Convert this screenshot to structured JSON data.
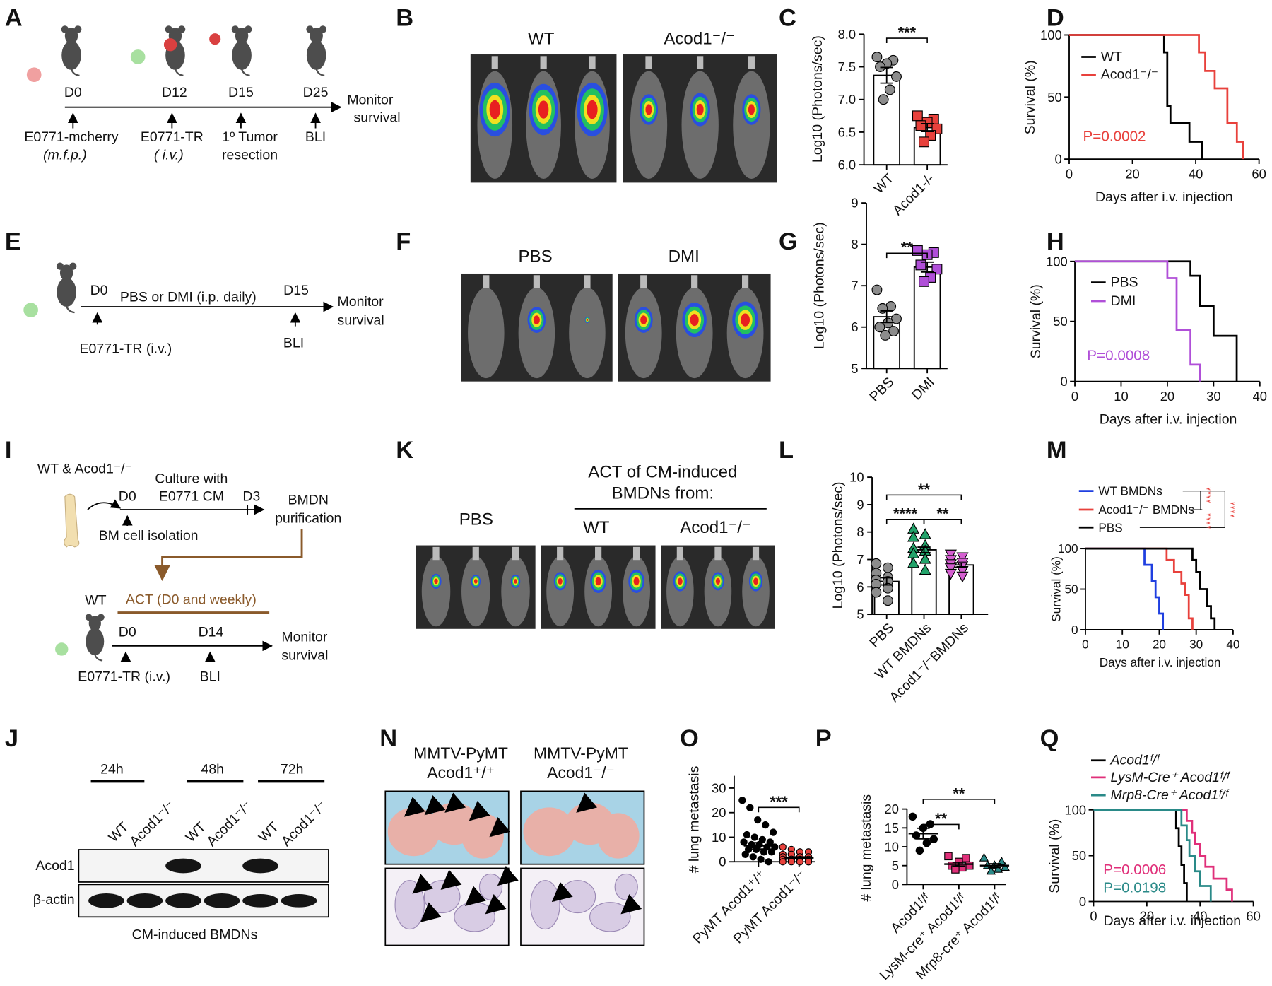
{
  "panel_letters": [
    "A",
    "B",
    "C",
    "D",
    "E",
    "F",
    "G",
    "H",
    "I",
    "J",
    "K",
    "L",
    "M",
    "N",
    "O",
    "P",
    "Q"
  ],
  "schematic_a": {
    "days": [
      "D0",
      "D12",
      "D15",
      "D25"
    ],
    "captions": [
      [
        "E0771-mcherry",
        "(m.f.p.)"
      ],
      [
        "E0771-TR",
        "( i.v.)"
      ],
      [
        "1º Tumor",
        "resection"
      ],
      [
        "BLI"
      ]
    ],
    "end": [
      "Monitor",
      "survival"
    ]
  },
  "images_b": {
    "groups": [
      "WT",
      "Acod1⁻/⁻"
    ]
  },
  "schematic_e": {
    "days": [
      "D0",
      "D15"
    ],
    "treatment": "PBS or DMI  (i.p. daily)",
    "captions": [
      "E0771-TR (i.v.)",
      "BLI"
    ],
    "end": [
      "Monitor",
      "survival"
    ]
  },
  "images_f": {
    "groups": [
      "PBS",
      "DMI"
    ]
  },
  "schematic_i": {
    "source": "WT & Acod1⁻/⁻",
    "culture": [
      "Culture with",
      "E0771 CM"
    ],
    "days_top": [
      "D0",
      "D3"
    ],
    "isolation": "BM cell isolation",
    "purification": [
      "BMDN",
      "purification"
    ],
    "act": "ACT (D0 and weekly)",
    "host": "WT",
    "days_bottom": [
      "D0",
      "D14"
    ],
    "captions": [
      "E0771-TR (i.v.)",
      "BLI"
    ],
    "end": [
      "Monitor",
      "survival"
    ]
  },
  "images_k": {
    "control": "PBS",
    "heading": [
      "ACT of CM-induced",
      "BMDNs from:"
    ],
    "groups": [
      "WT",
      "Acod1⁻/⁻"
    ]
  },
  "blot_j": {
    "times": [
      "24h",
      "48h",
      "72h"
    ],
    "lanes": [
      "WT",
      "Acod1⁻/⁻",
      "WT",
      "Acod1⁻/⁻",
      "WT",
      "Acod1⁻/⁻"
    ],
    "proteins": [
      "Acod1",
      "β-actin"
    ],
    "caption": "CM-induced BMDNs"
  },
  "images_n": {
    "groups": [
      [
        "MMTV-PyMT",
        "Acod1⁺/⁺"
      ],
      [
        "MMTV-PyMT",
        "Acod1⁻/⁻"
      ]
    ]
  },
  "chart_data": [
    {
      "type": "bar",
      "ylabel": "Log10 (Photons/sec)",
      "categories": [
        "WT",
        "Acod1-/-"
      ],
      "values": [
        7.37,
        6.57
      ],
      "errors": [
        0.12,
        0.06
      ],
      "points": [
        [
          7.65,
          7.6,
          7.55,
          7.5,
          7.35,
          7.15,
          7.0
        ],
        [
          6.75,
          6.7,
          6.65,
          6.6,
          6.55,
          6.45,
          6.35
        ]
      ],
      "colors": [
        "#8c8c8c",
        "#e8413c"
      ],
      "markers": [
        "circle",
        "square"
      ],
      "ylim": [
        6,
        8
      ],
      "yticks": [
        {
          "value": 6,
          "label": "6.0"
        },
        6.5,
        {
          "value": 7,
          "label": "7.0"
        },
        7.5,
        {
          "value": 8,
          "label": "8.0"
        }
      ],
      "annotations": [
        {
          "text": "***"
        }
      ]
    },
    {
      "type": "line",
      "ylabel": "Survival (%)",
      "xlabel": "Days after i.v. injection",
      "xlim": [
        0,
        60
      ],
      "xticks": [
        0,
        20,
        40,
        60
      ],
      "ylim": [
        0,
        100
      ],
      "yticks": [
        0,
        50,
        100
      ],
      "series": [
        {
          "name": "WT",
          "color": "#000000",
          "x": [
            0,
            30,
            31,
            32,
            38,
            42
          ],
          "values": [
            100,
            86,
            43,
            29,
            14,
            0
          ]
        },
        {
          "name": "Acod1⁻/⁻",
          "color": "#e8413c",
          "x": [
            0,
            41,
            43,
            46,
            50,
            53,
            55
          ],
          "values": [
            100,
            86,
            71,
            57,
            29,
            14,
            0
          ]
        }
      ],
      "annotations": [
        {
          "text": "P=0.0002",
          "color": "#e8413c"
        }
      ]
    },
    {
      "type": "bar",
      "ylabel": "Log10 (Photons/sec)",
      "categories": [
        "PBS",
        "DMI"
      ],
      "values": [
        6.25,
        7.45
      ],
      "errors": [
        0.14,
        0.12
      ],
      "points": [
        [
          6.9,
          6.5,
          6.45,
          6.2,
          6.1,
          6.0,
          5.9,
          5.8
        ],
        [
          7.85,
          7.8,
          7.75,
          7.5,
          7.4,
          7.2,
          7.1
        ]
      ],
      "colors": [
        "#8c8c8c",
        "#b04fd8"
      ],
      "markers": [
        "circle",
        "square"
      ],
      "ylim": [
        5,
        9
      ],
      "yticks": [
        5,
        6,
        7,
        8,
        9
      ],
      "annotations": [
        {
          "text": "**"
        }
      ]
    },
    {
      "type": "line",
      "ylabel": "Survival (%)",
      "xlabel": "Days after i.v. injection",
      "xlim": [
        0,
        40
      ],
      "xticks": [
        0,
        10,
        20,
        30,
        40
      ],
      "ylim": [
        0,
        100
      ],
      "yticks": [
        0,
        50,
        100
      ],
      "series": [
        {
          "name": "PBS",
          "color": "#000000",
          "x": [
            0,
            25,
            27,
            30,
            35
          ],
          "values": [
            100,
            88,
            63,
            38,
            0
          ]
        },
        {
          "name": "DMI",
          "color": "#b04fd8",
          "x": [
            0,
            20,
            22,
            25,
            27
          ],
          "values": [
            100,
            86,
            43,
            14,
            0
          ]
        }
      ],
      "annotations": [
        {
          "text": "P=0.0008",
          "color": "#b04fd8"
        }
      ]
    },
    {
      "type": "bar",
      "ylabel": "Log10 (Photons/sec)",
      "categories": [
        "PBS",
        "WT BMDNs",
        "Acod1⁻/⁻BMDNs"
      ],
      "values": [
        6.2,
        7.35,
        6.8
      ],
      "errors": [
        0.13,
        0.1,
        0.08
      ],
      "points": [
        [
          6.85,
          6.7,
          6.5,
          6.35,
          6.25,
          6.2,
          6.1,
          5.95,
          5.8,
          5.5
        ],
        [
          8.1,
          7.9,
          7.8,
          7.5,
          7.4,
          7.3,
          7.2,
          7.0,
          6.85,
          6.6
        ],
        [
          7.2,
          7.1,
          7.0,
          6.9,
          6.85,
          6.8,
          6.7,
          6.6,
          6.5,
          6.4
        ]
      ],
      "colors": [
        "#8c8c8c",
        "#22a36a",
        "#d45fd0"
      ],
      "markers": [
        "circle",
        "triangle",
        "triangle-down"
      ],
      "ylim": [
        5,
        10
      ],
      "yticks": [
        5,
        6,
        7,
        8,
        9,
        10
      ],
      "annotations": [
        {
          "text": "**"
        },
        {
          "text": "****"
        },
        {
          "text": "**"
        }
      ]
    },
    {
      "type": "line",
      "ylabel": "Survival (%)",
      "xlabel": "Days after i.v. injection",
      "xlim": [
        0,
        40
      ],
      "xticks": [
        0,
        10,
        20,
        30,
        40
      ],
      "ylim": [
        0,
        100
      ],
      "yticks": [
        0,
        50,
        100
      ],
      "series": [
        {
          "name": "WT BMDNs",
          "color": "#1f3fe0",
          "x": [
            0,
            16,
            18,
            19,
            20,
            21
          ],
          "values": [
            100,
            80,
            60,
            40,
            20,
            0
          ]
        },
        {
          "name": "Acod1⁻/⁻ BMDNs",
          "color": "#e8413c",
          "x": [
            0,
            22,
            24,
            26,
            27,
            28,
            29
          ],
          "values": [
            100,
            86,
            71,
            57,
            43,
            14,
            0
          ]
        },
        {
          "name": "PBS",
          "color": "#000000",
          "x": [
            0,
            29,
            30,
            31,
            33,
            34,
            35
          ],
          "values": [
            100,
            86,
            71,
            50,
            29,
            14,
            0
          ]
        }
      ],
      "annotations": [
        {
          "text": "****",
          "color": "#e8413c"
        },
        {
          "text": "****",
          "color": "#e8413c"
        },
        {
          "text": "****",
          "color": "#e8413c"
        }
      ]
    },
    {
      "type": "dot",
      "ylabel": "# lung metastasis",
      "categories": [
        "PyMT Acod1⁺/⁺",
        "PyMT Acod1⁻/⁻"
      ],
      "values": [
        6.5,
        1.6
      ],
      "errors": [
        1.3,
        0.4
      ],
      "points": [
        [
          25,
          22,
          17,
          15,
          12,
          11,
          10,
          9,
          8,
          8,
          7,
          7,
          6,
          6,
          5,
          5,
          4,
          4,
          3,
          2,
          1,
          0
        ],
        [
          6,
          5,
          4,
          4,
          3,
          3,
          2,
          2,
          2,
          1,
          1,
          1,
          1,
          1,
          0,
          0,
          0,
          0,
          0,
          0
        ]
      ],
      "colors": [
        "#000000",
        "#e8413c"
      ],
      "markers": [
        "circle",
        "circle"
      ],
      "ylim": [
        0,
        35
      ],
      "yticks": [
        0,
        10,
        20,
        30
      ],
      "annotations": [
        {
          "text": "***"
        }
      ]
    },
    {
      "type": "dot",
      "ylabel": "# lung metastasis",
      "categories": [
        "Acod1ᶠ/ᶠ",
        "LysM-cre⁺ Acod1ᶠ/ᶠ",
        "Mrp8-cre⁺ Acod1ᶠ/ᶠ"
      ],
      "values": [
        13.5,
        5.4,
        5.0
      ],
      "errors": [
        1.4,
        0.5,
        0.5
      ],
      "points": [
        [
          18,
          16,
          15,
          13,
          12,
          11,
          9
        ],
        [
          7.5,
          7,
          6,
          5,
          5,
          4.5,
          4
        ],
        [
          7,
          6,
          5,
          5,
          4.5,
          4,
          3.5
        ]
      ],
      "colors": [
        "#000000",
        "#e0307a",
        "#2a8a88"
      ],
      "markers": [
        "circle",
        "square",
        "triangle"
      ],
      "ylim": [
        0,
        20
      ],
      "yticks": [
        0,
        5,
        10,
        15,
        20
      ],
      "annotations": [
        {
          "text": "**"
        },
        {
          "text": "**"
        }
      ]
    },
    {
      "type": "line",
      "ylabel": "Survival (%)",
      "xlabel": "Days after i.v. injection",
      "xlim": [
        0,
        60
      ],
      "xticks": [
        0,
        20,
        40,
        60
      ],
      "ylim": [
        0,
        100
      ],
      "yticks": [
        0,
        50,
        100
      ],
      "series": [
        {
          "name": "Acod1ᶠ/ᶠ",
          "color": "#000000",
          "x": [
            0,
            31,
            32,
            33,
            34,
            35
          ],
          "values": [
            100,
            80,
            60,
            40,
            20,
            0
          ]
        },
        {
          "name": "LysM-Cre⁺ Acod1ᶠ/ᶠ",
          "color": "#e0307a",
          "x": [
            0,
            35,
            37,
            38,
            40,
            42,
            45,
            50,
            52
          ],
          "values": [
            100,
            88,
            75,
            63,
            50,
            38,
            25,
            13,
            0
          ]
        },
        {
          "name": "Mrp8-Cre⁺ Acod1ᶠ/ᶠ",
          "color": "#2a8a88",
          "x": [
            0,
            33,
            35,
            36,
            38,
            40,
            44
          ],
          "values": [
            100,
            83,
            67,
            50,
            33,
            17,
            0
          ]
        }
      ],
      "annotations": [
        {
          "text": "P=0.0006",
          "color": "#e0307a"
        },
        {
          "text": "P=0.0198",
          "color": "#2a8a88"
        }
      ]
    }
  ]
}
